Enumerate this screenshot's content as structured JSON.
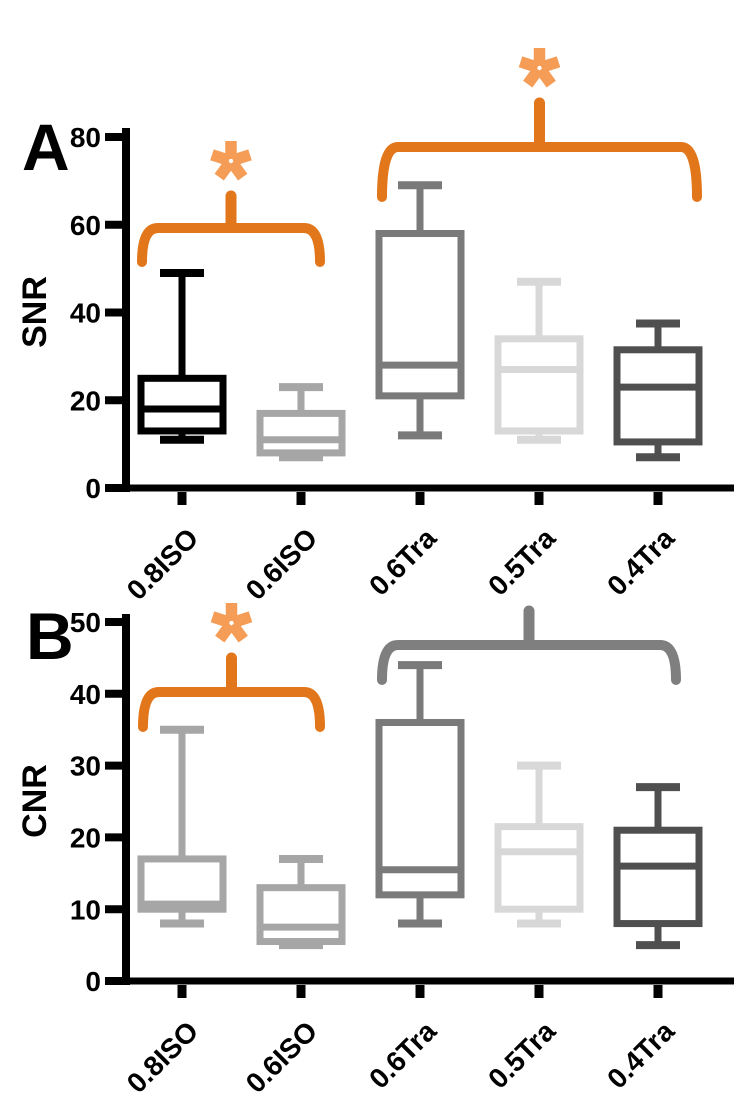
{
  "figure_background": "#ffffff",
  "colors": {
    "axis": "#000000",
    "significance_orange": "#e2761b",
    "asterisk_orange": "#f59d56",
    "nonsignificance_gray": "#7f7f7f"
  },
  "chart_data": [
    {
      "type": "box",
      "panel_label": "A",
      "ylabel": "SNR",
      "ylim": [
        0,
        80
      ],
      "yticks": [
        0,
        20,
        40,
        60,
        80
      ],
      "grid": false,
      "categories": [
        "0.8ISO",
        "0.6ISO",
        "0.6Tra",
        "0.5Tra",
        "0.4Tra"
      ],
      "series": [
        {
          "category": "0.8ISO",
          "color": "#000000",
          "whisker_low": 11,
          "q1": 13,
          "median": 18,
          "q3": 25,
          "whisker_high": 49
        },
        {
          "category": "0.6ISO",
          "color": "#a6a6a6",
          "whisker_low": 7,
          "q1": 8,
          "median": 11,
          "q3": 17,
          "whisker_high": 23
        },
        {
          "category": "0.6Tra",
          "color": "#7a7a7a",
          "whisker_low": 12,
          "q1": 21,
          "median": 28,
          "q3": 58,
          "whisker_high": 69
        },
        {
          "category": "0.5Tra",
          "color": "#d8d8d8",
          "whisker_low": 11,
          "q1": 13,
          "median": 27,
          "q3": 34,
          "whisker_high": 47
        },
        {
          "category": "0.4Tra",
          "color": "#4f4f4f",
          "whisker_low": 7,
          "q1": 10.5,
          "median": 23,
          "q3": 31.5,
          "whisker_high": 37.5
        }
      ],
      "significance_brackets": [
        {
          "from": "0.8ISO",
          "to": "0.6ISO",
          "label": "*",
          "significant": true,
          "color": "#e2761b",
          "asterisk_color": "#f59d56"
        },
        {
          "from": "0.6Tra",
          "to": "0.4Tra",
          "label": "*",
          "significant": true,
          "color": "#e2761b",
          "asterisk_color": "#f59d56"
        }
      ]
    },
    {
      "type": "box",
      "panel_label": "B",
      "ylabel": "CNR",
      "ylim": [
        0,
        50
      ],
      "yticks": [
        0,
        10,
        20,
        30,
        40,
        50
      ],
      "grid": false,
      "categories": [
        "0.8ISO",
        "0.6ISO",
        "0.6Tra",
        "0.5Tra",
        "0.4Tra"
      ],
      "series": [
        {
          "category": "0.8ISO",
          "color": "#a6a6a6",
          "whisker_low": 8,
          "q1": 10,
          "median": 10.7,
          "q3": 17,
          "whisker_high": 35
        },
        {
          "category": "0.6ISO",
          "color": "#a6a6a6",
          "whisker_low": 5,
          "q1": 5.5,
          "median": 7.5,
          "q3": 13,
          "whisker_high": 17
        },
        {
          "category": "0.6Tra",
          "color": "#7a7a7a",
          "whisker_low": 8,
          "q1": 12,
          "median": 15.5,
          "q3": 36,
          "whisker_high": 44
        },
        {
          "category": "0.5Tra",
          "color": "#d8d8d8",
          "whisker_low": 8,
          "q1": 10,
          "median": 18,
          "q3": 21.5,
          "whisker_high": 30
        },
        {
          "category": "0.4Tra",
          "color": "#4f4f4f",
          "whisker_low": 5,
          "q1": 8,
          "median": 16,
          "q3": 21,
          "whisker_high": 27
        }
      ],
      "significance_brackets": [
        {
          "from": "0.8ISO",
          "to": "0.6ISO",
          "label": "*",
          "significant": true,
          "color": "#e2761b",
          "asterisk_color": "#f59d56"
        },
        {
          "from": "0.6Tra",
          "to": "0.4Tra",
          "label": "",
          "significant": false,
          "color": "#7f7f7f",
          "asterisk_color": null
        }
      ]
    }
  ]
}
